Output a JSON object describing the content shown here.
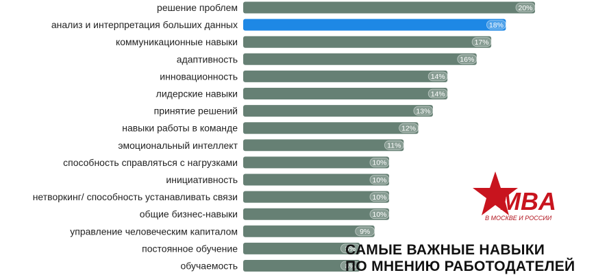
{
  "chart_data": {
    "type": "bar",
    "orientation": "horizontal",
    "categories": [
      "решение проблем",
      "анализ и интерпретация больших данных",
      "коммуникационные навыки",
      "адаптивность",
      "инновационность",
      "лидерские навыки",
      "принятие решений",
      "навыки работы в команде",
      "эмоциональный интеллект",
      "способность справляться с нагрузками",
      "инициативность",
      "нетворкинг/ способность  устанавливать связи",
      "общие бизнес-навыки",
      "управление человеческим капиталом",
      "постоянное обучение",
      "обучаемость"
    ],
    "values": [
      20,
      18,
      17,
      16,
      14,
      14,
      13,
      12,
      11,
      10,
      10,
      10,
      10,
      9,
      8,
      8
    ],
    "value_labels": [
      "20%",
      "18%",
      "17%",
      "16%",
      "14%",
      "14%",
      "13%",
      "12%",
      "11%",
      "10%",
      "10%",
      "10%",
      "10%",
      "9%",
      "8%",
      "8%"
    ],
    "highlight_index": 1,
    "bar_color": "#668074",
    "highlight_color": "#1e88e5",
    "grid": false,
    "legend": "none"
  },
  "caption": {
    "line1": "САМЫЕ ВАЖНЫЕ НАВЫКИ",
    "line2": "ПО МНЕНИЮ РАБОТОДАТЕЛЕЙ"
  },
  "logo": {
    "text": "MBA",
    "tagline": "В МОСКВЕ И РОССИИ",
    "color": "#c8141e"
  }
}
